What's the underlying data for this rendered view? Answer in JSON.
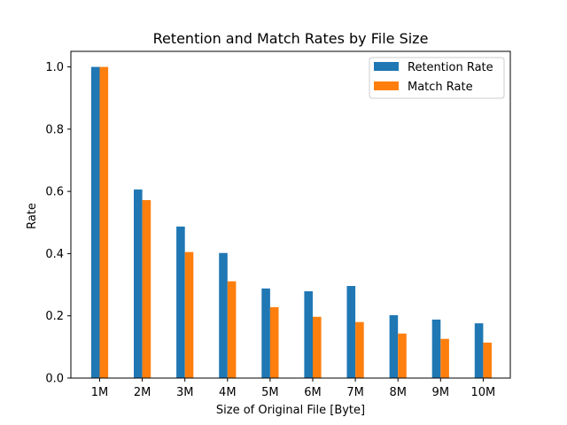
{
  "chart_data": {
    "type": "bar",
    "title": "Retention and Match Rates by File Size",
    "xlabel": "Size of Original File [Byte]",
    "ylabel": "Rate",
    "categories": [
      "1M",
      "2M",
      "3M",
      "4M",
      "5M",
      "6M",
      "7M",
      "8M",
      "9M",
      "10M"
    ],
    "series": [
      {
        "name": "Retention Rate",
        "color": "#1f77b4",
        "values": [
          1.0,
          0.606,
          0.487,
          0.402,
          0.288,
          0.279,
          0.296,
          0.202,
          0.188,
          0.176
        ]
      },
      {
        "name": "Match Rate",
        "color": "#ff7f0e",
        "values": [
          1.0,
          0.572,
          0.405,
          0.311,
          0.228,
          0.197,
          0.18,
          0.143,
          0.126,
          0.114
        ]
      }
    ],
    "ylim": [
      0,
      1.05
    ],
    "yticks": [
      "0.0",
      "0.2",
      "0.4",
      "0.6",
      "0.8",
      "1.0"
    ],
    "grid": false,
    "legend_position": "top-right"
  }
}
